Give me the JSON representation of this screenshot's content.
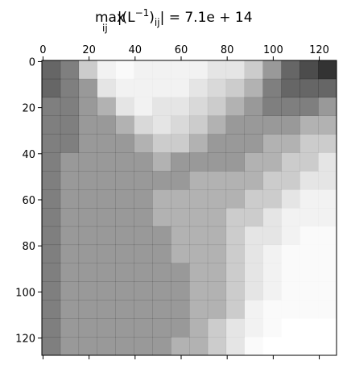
{
  "chart_data": {
    "type": "spy",
    "title": {
      "operator": "max",
      "operator_sub": "ij",
      "open": "|(L",
      "sup": "−1",
      "close": ")",
      "sub": "ij",
      "rest": "| = 7.1e + 14"
    },
    "xlim": [
      -0.5,
      127.5
    ],
    "ylim": [
      127.5,
      -0.5
    ],
    "xticks": [
      0,
      20,
      40,
      60,
      80,
      100,
      120
    ],
    "yticks": [
      0,
      20,
      40,
      60,
      80,
      100,
      120
    ],
    "color": "#000000",
    "density": [
      [
        0.6,
        0.5,
        0.2,
        0.05,
        0.02,
        0.05,
        0.05,
        0.05,
        0.05,
        0.1,
        0.1,
        0.2,
        0.4,
        0.6,
        0.7,
        0.8
      ],
      [
        0.6,
        0.5,
        0.4,
        0.1,
        0.05,
        0.05,
        0.05,
        0.05,
        0.1,
        0.15,
        0.2,
        0.3,
        0.5,
        0.6,
        0.6,
        0.6
      ],
      [
        0.5,
        0.5,
        0.4,
        0.3,
        0.1,
        0.05,
        0.1,
        0.1,
        0.15,
        0.2,
        0.3,
        0.4,
        0.5,
        0.5,
        0.5,
        0.4
      ],
      [
        0.5,
        0.5,
        0.4,
        0.4,
        0.3,
        0.15,
        0.1,
        0.15,
        0.2,
        0.3,
        0.4,
        0.4,
        0.4,
        0.4,
        0.3,
        0.3
      ],
      [
        0.5,
        0.5,
        0.4,
        0.4,
        0.4,
        0.3,
        0.2,
        0.2,
        0.3,
        0.4,
        0.4,
        0.4,
        0.3,
        0.3,
        0.2,
        0.2
      ],
      [
        0.5,
        0.4,
        0.4,
        0.4,
        0.4,
        0.4,
        0.3,
        0.4,
        0.4,
        0.4,
        0.4,
        0.3,
        0.3,
        0.2,
        0.2,
        0.1
      ],
      [
        0.5,
        0.4,
        0.4,
        0.4,
        0.4,
        0.4,
        0.4,
        0.4,
        0.3,
        0.3,
        0.3,
        0.3,
        0.2,
        0.2,
        0.1,
        0.1
      ],
      [
        0.5,
        0.4,
        0.4,
        0.4,
        0.4,
        0.4,
        0.3,
        0.3,
        0.3,
        0.3,
        0.3,
        0.2,
        0.2,
        0.1,
        0.05,
        0.05
      ],
      [
        0.5,
        0.4,
        0.4,
        0.4,
        0.4,
        0.4,
        0.3,
        0.3,
        0.3,
        0.3,
        0.2,
        0.2,
        0.1,
        0.05,
        0.05,
        0.05
      ],
      [
        0.5,
        0.4,
        0.4,
        0.4,
        0.4,
        0.4,
        0.4,
        0.3,
        0.3,
        0.3,
        0.2,
        0.1,
        0.1,
        0.05,
        0.02,
        0.02
      ],
      [
        0.5,
        0.4,
        0.4,
        0.4,
        0.4,
        0.4,
        0.4,
        0.3,
        0.3,
        0.3,
        0.2,
        0.1,
        0.05,
        0.02,
        0.02,
        0.02
      ],
      [
        0.5,
        0.4,
        0.4,
        0.4,
        0.4,
        0.4,
        0.4,
        0.4,
        0.3,
        0.3,
        0.2,
        0.1,
        0.05,
        0.02,
        0.02,
        0.02
      ],
      [
        0.5,
        0.4,
        0.4,
        0.4,
        0.4,
        0.4,
        0.4,
        0.4,
        0.3,
        0.3,
        0.2,
        0.1,
        0.05,
        0.02,
        0.02,
        0.02
      ],
      [
        0.5,
        0.4,
        0.4,
        0.4,
        0.4,
        0.4,
        0.4,
        0.4,
        0.3,
        0.3,
        0.2,
        0.05,
        0.02,
        0.02,
        0.02,
        0.02
      ],
      [
        0.5,
        0.4,
        0.4,
        0.4,
        0.4,
        0.4,
        0.4,
        0.4,
        0.3,
        0.2,
        0.1,
        0.05,
        0.02,
        0,
        0,
        0
      ],
      [
        0.5,
        0.4,
        0.4,
        0.4,
        0.4,
        0.4,
        0.4,
        0.3,
        0.3,
        0.2,
        0.1,
        0.02,
        0,
        0,
        0,
        0
      ]
    ]
  }
}
